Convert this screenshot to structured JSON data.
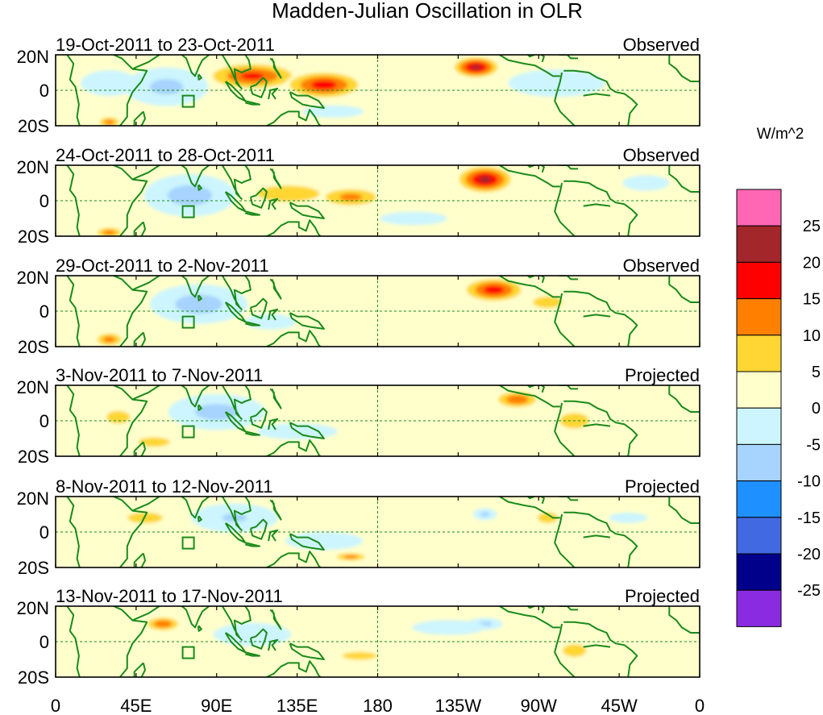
{
  "title": "Madden-Julian Oscillation in OLR",
  "colorbar": {
    "unit_label": "W/m^2",
    "levels": [
      "25",
      "20",
      "15",
      "10",
      "5",
      "0",
      "-5",
      "-10",
      "-15",
      "-20",
      "-25"
    ],
    "colors": [
      "#ff66b3",
      "#a3262a",
      "#ff0000",
      "#ff7f00",
      "#ffd633",
      "#ffffcc",
      "#ccf5ff",
      "#a6d3ff",
      "#1e90ff",
      "#4169e1",
      "#00008b",
      "#8a2be2"
    ]
  },
  "x_ticks": [
    "0",
    "45E",
    "90E",
    "135E",
    "180",
    "135W",
    "90W",
    "45W",
    "0"
  ],
  "lat_labels": [
    "20N",
    "0",
    "20S"
  ],
  "panels": [
    {
      "period": "19-Oct-2011 to 23-Oct-2011",
      "status": "Observed",
      "anomalies": [
        {
          "lon": 65,
          "lat": 6,
          "rlon": 14,
          "rlat": 6,
          "v": -30
        },
        {
          "lon": 62,
          "lat": 2,
          "rlon": 28,
          "rlat": 13,
          "v": -12
        },
        {
          "lon": 30,
          "lat": 4,
          "rlon": 22,
          "rlat": 10,
          "v": -6
        },
        {
          "lon": 110,
          "lat": 8,
          "rlon": 30,
          "rlat": 9,
          "v": 16
        },
        {
          "lon": 150,
          "lat": 3,
          "rlon": 25,
          "rlat": 9,
          "v": 18
        },
        {
          "lon": 235,
          "lat": 13,
          "rlon": 15,
          "rlat": 7,
          "v": 22
        },
        {
          "lon": 280,
          "lat": 4,
          "rlon": 35,
          "rlat": 10,
          "v": -8
        },
        {
          "lon": 30,
          "lat": -18,
          "rlon": 8,
          "rlat": 4,
          "v": 12
        },
        {
          "lon": 155,
          "lat": -12,
          "rlon": 25,
          "rlat": 5,
          "v": -5
        }
      ]
    },
    {
      "period": "24-Oct-2011 to 28-Oct-2011",
      "status": "Observed",
      "anomalies": [
        {
          "lon": 72,
          "lat": 5,
          "rlon": 16,
          "rlat": 8,
          "v": -30
        },
        {
          "lon": 75,
          "lat": 3,
          "rlon": 30,
          "rlat": 14,
          "v": -14
        },
        {
          "lon": 130,
          "lat": 4,
          "rlon": 35,
          "rlat": 9,
          "v": 7
        },
        {
          "lon": 165,
          "lat": 2,
          "rlon": 22,
          "rlat": 7,
          "v": 11
        },
        {
          "lon": 240,
          "lat": 12,
          "rlon": 18,
          "rlat": 9,
          "v": 22
        },
        {
          "lon": 200,
          "lat": -10,
          "rlon": 25,
          "rlat": 5,
          "v": -7
        },
        {
          "lon": 30,
          "lat": -18,
          "rlon": 10,
          "rlat": 4,
          "v": 12
        },
        {
          "lon": 330,
          "lat": 10,
          "rlon": 18,
          "rlat": 6,
          "v": -6
        }
      ]
    },
    {
      "period": "29-Oct-2011 to 2-Nov-2011",
      "status": "Observed",
      "anomalies": [
        {
          "lon": 80,
          "lat": 6,
          "rlon": 15,
          "rlat": 7,
          "v": -30
        },
        {
          "lon": 80,
          "lat": 4,
          "rlon": 32,
          "rlat": 13,
          "v": -14
        },
        {
          "lon": 120,
          "lat": -6,
          "rlon": 20,
          "rlat": 6,
          "v": -6
        },
        {
          "lon": 245,
          "lat": 12,
          "rlon": 20,
          "rlat": 8,
          "v": 18
        },
        {
          "lon": 275,
          "lat": 5,
          "rlon": 15,
          "rlat": 6,
          "v": 8
        },
        {
          "lon": 30,
          "lat": -16,
          "rlon": 10,
          "rlat": 5,
          "v": 12
        },
        {
          "lon": 140,
          "lat": 10,
          "rlon": 25,
          "rlat": 6,
          "v": 4
        }
      ]
    },
    {
      "period": "3-Nov-2011 to 7-Nov-2011",
      "status": "Projected",
      "anomalies": [
        {
          "lon": 88,
          "lat": 8,
          "rlon": 12,
          "rlat": 6,
          "v": -26
        },
        {
          "lon": 90,
          "lat": 5,
          "rlon": 32,
          "rlat": 12,
          "v": -13
        },
        {
          "lon": 135,
          "lat": -6,
          "rlon": 30,
          "rlat": 6,
          "v": -7
        },
        {
          "lon": 258,
          "lat": 12,
          "rlon": 15,
          "rlat": 6,
          "v": 14
        },
        {
          "lon": 290,
          "lat": 0,
          "rlon": 15,
          "rlat": 8,
          "v": 8
        },
        {
          "lon": 35,
          "lat": 2,
          "rlon": 15,
          "rlat": 8,
          "v": 6
        },
        {
          "lon": 55,
          "lat": -12,
          "rlon": 20,
          "rlat": 6,
          "v": 6
        }
      ]
    },
    {
      "period": "8-Nov-2011 to 12-Nov-2011",
      "status": "Projected",
      "anomalies": [
        {
          "lon": 100,
          "lat": 8,
          "rlon": 30,
          "rlat": 10,
          "v": -10
        },
        {
          "lon": 150,
          "lat": -5,
          "rlon": 30,
          "rlat": 7,
          "v": -6
        },
        {
          "lon": 240,
          "lat": 10,
          "rlon": 8,
          "rlat": 4,
          "v": -12
        },
        {
          "lon": 50,
          "lat": 8,
          "rlon": 20,
          "rlat": 6,
          "v": 7
        },
        {
          "lon": 165,
          "lat": -14,
          "rlon": 12,
          "rlat": 3,
          "v": 12
        },
        {
          "lon": 275,
          "lat": 8,
          "rlon": 15,
          "rlat": 8,
          "v": 5
        },
        {
          "lon": 320,
          "lat": 8,
          "rlon": 15,
          "rlat": 4,
          "v": -6
        }
      ]
    },
    {
      "period": "13-Nov-2011 to 17-Nov-2011",
      "status": "Projected",
      "anomalies": [
        {
          "lon": 60,
          "lat": 10,
          "rlon": 12,
          "rlat": 5,
          "v": 14
        },
        {
          "lon": 110,
          "lat": 4,
          "rlon": 30,
          "rlat": 9,
          "v": -6
        },
        {
          "lon": 240,
          "lat": 10,
          "rlon": 12,
          "rlat": 4,
          "v": -12
        },
        {
          "lon": 170,
          "lat": -8,
          "rlon": 22,
          "rlat": 5,
          "v": 6
        },
        {
          "lon": 290,
          "lat": -5,
          "rlon": 15,
          "rlat": 8,
          "v": 6
        },
        {
          "lon": 220,
          "lat": 8,
          "rlon": 30,
          "rlat": 6,
          "v": -5
        }
      ]
    }
  ]
}
